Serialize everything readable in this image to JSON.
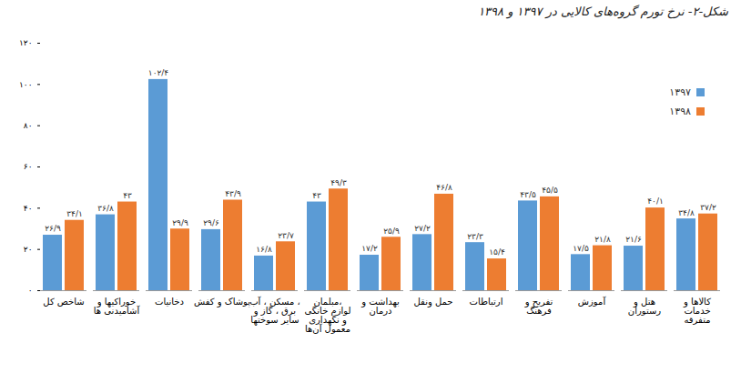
{
  "chart_data": {
    "type": "bar",
    "title": "شکل-۲- نرخ تورم گروه‌های کالایی در ۱۳۹۷ و ۱۳۹۸",
    "categories": [
      "شاخص کل",
      "خوراکیها و آشامیدنی ها",
      "دخانیات",
      "پوشاک و کفش",
      "مسکن ، آب ، برق ، گاز و سایر سوختها",
      "مبلمان، لوازم خانگی و نگهداری معمول آن‌ها",
      "بهداشت و درمان",
      "حمل ونقل",
      "ارتباطات",
      "تفریح و فرهنگ",
      "آموزش",
      "هتل و رستوران",
      "کالاها و خدمات متفرقه"
    ],
    "series": [
      {
        "name": "۱۳۹۷",
        "color": "#5b9bd5",
        "values": [
          26.9,
          36.8,
          102.4,
          29.6,
          16.8,
          43,
          17.2,
          27.2,
          23.3,
          43.5,
          17.5,
          21.6,
          34.8
        ],
        "value_labels": [
          "۲۶/۹",
          "۳۶/۸",
          "۱۰۲/۴",
          "۲۹/۶",
          "۱۶/۸",
          "۴۳",
          "۱۷/۲",
          "۲۷/۲",
          "۲۳/۳",
          "۴۳/۵",
          "۱۷/۵",
          "۲۱/۶",
          "۳۴/۸"
        ]
      },
      {
        "name": "۱۳۹۸",
        "color": "#ed7d31",
        "values": [
          34.1,
          43,
          29.9,
          43.9,
          23.7,
          49.3,
          25.9,
          46.8,
          15.4,
          45.5,
          21.8,
          40.1,
          37.2
        ],
        "value_labels": [
          "۳۴/۱",
          "۴۳",
          "۲۹/۹",
          "۴۳/۹",
          "۲۳/۷",
          "۴۹/۳",
          "۲۵/۹",
          "۴۶/۸",
          "۱۵/۴",
          "۴۵/۵",
          "۲۱/۸",
          "۴۰/۱",
          "۳۷/۲"
        ]
      }
    ],
    "ylim": [
      0,
      120
    ],
    "yticks": [
      {
        "value": 0,
        "label": "۰"
      },
      {
        "value": 20,
        "label": "۲۰"
      },
      {
        "value": 40,
        "label": "۴۰"
      },
      {
        "value": 60,
        "label": "۶۰"
      },
      {
        "value": 80,
        "label": "۸۰"
      },
      {
        "value": 100,
        "label": "۱۰۰"
      },
      {
        "value": 120,
        "label": "۱۲۰"
      }
    ],
    "grid": false,
    "data_labels": true,
    "legend": "top-right"
  }
}
